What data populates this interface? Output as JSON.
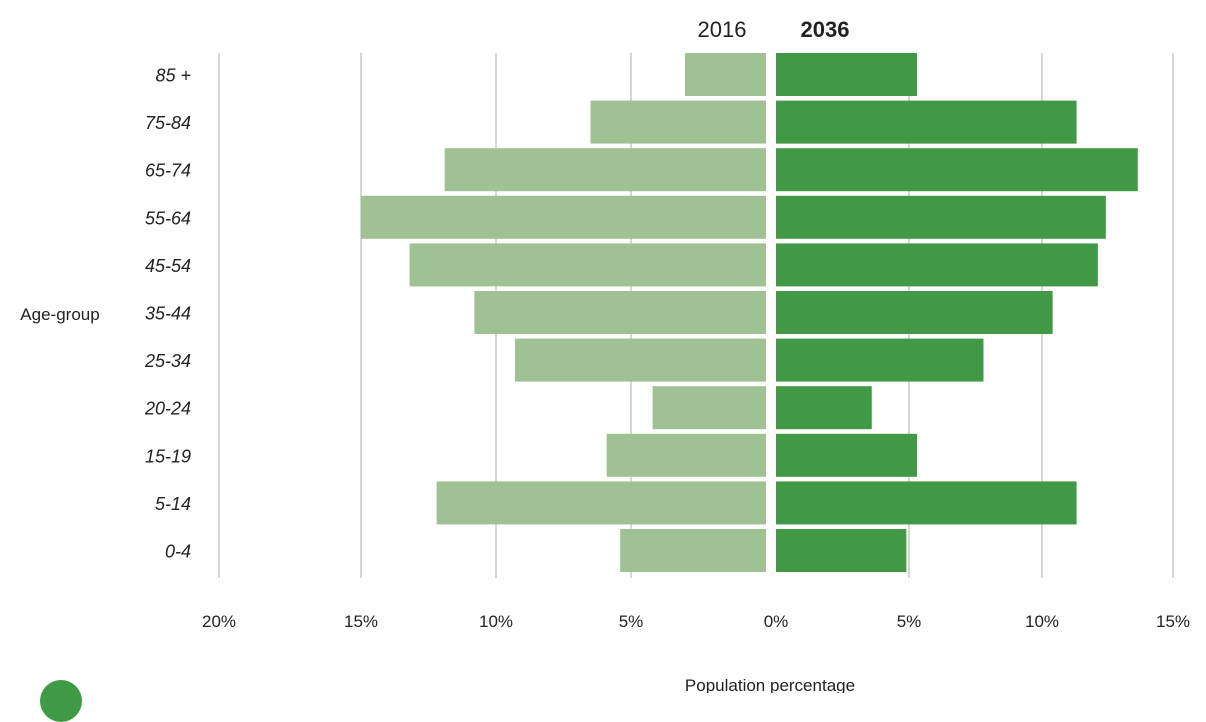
{
  "chart_data": {
    "type": "bar",
    "orientation": "horizontal-butterfly",
    "categories": [
      "85 +",
      "75-84",
      "65-74",
      "55-64",
      "45-54",
      "35-44",
      "25-34",
      "20-24",
      "15-19",
      "5-14",
      "0-4"
    ],
    "series": [
      {
        "name": "2016",
        "side": "left",
        "color": "#a0c194",
        "values": [
          3.0,
          6.5,
          11.9,
          15.0,
          13.2,
          10.8,
          9.3,
          4.2,
          5.9,
          12.2,
          5.4
        ]
      },
      {
        "name": "2036",
        "side": "right",
        "color": "#419945",
        "values": [
          5.3,
          11.3,
          13.6,
          12.4,
          12.1,
          10.4,
          7.8,
          3.6,
          5.3,
          11.3,
          4.9
        ]
      }
    ],
    "xlabel": "Population percentage",
    "ylabel": "Age-group",
    "xlim_left": [
      0,
      20
    ],
    "xlim_right": [
      0,
      15
    ],
    "x_ticks_left": [
      "20%",
      "15%",
      "10%",
      "5%",
      "0%"
    ],
    "x_ticks_right": [
      "5%",
      "10%",
      "15%"
    ],
    "grid": true,
    "legend_position": "top"
  },
  "colors": {
    "light_green": "#a0c194",
    "dark_green": "#419945",
    "grid": "#c8c8c8"
  },
  "logo": {
    "icon": "circle-logo-icon",
    "color": "#3f9a45"
  }
}
